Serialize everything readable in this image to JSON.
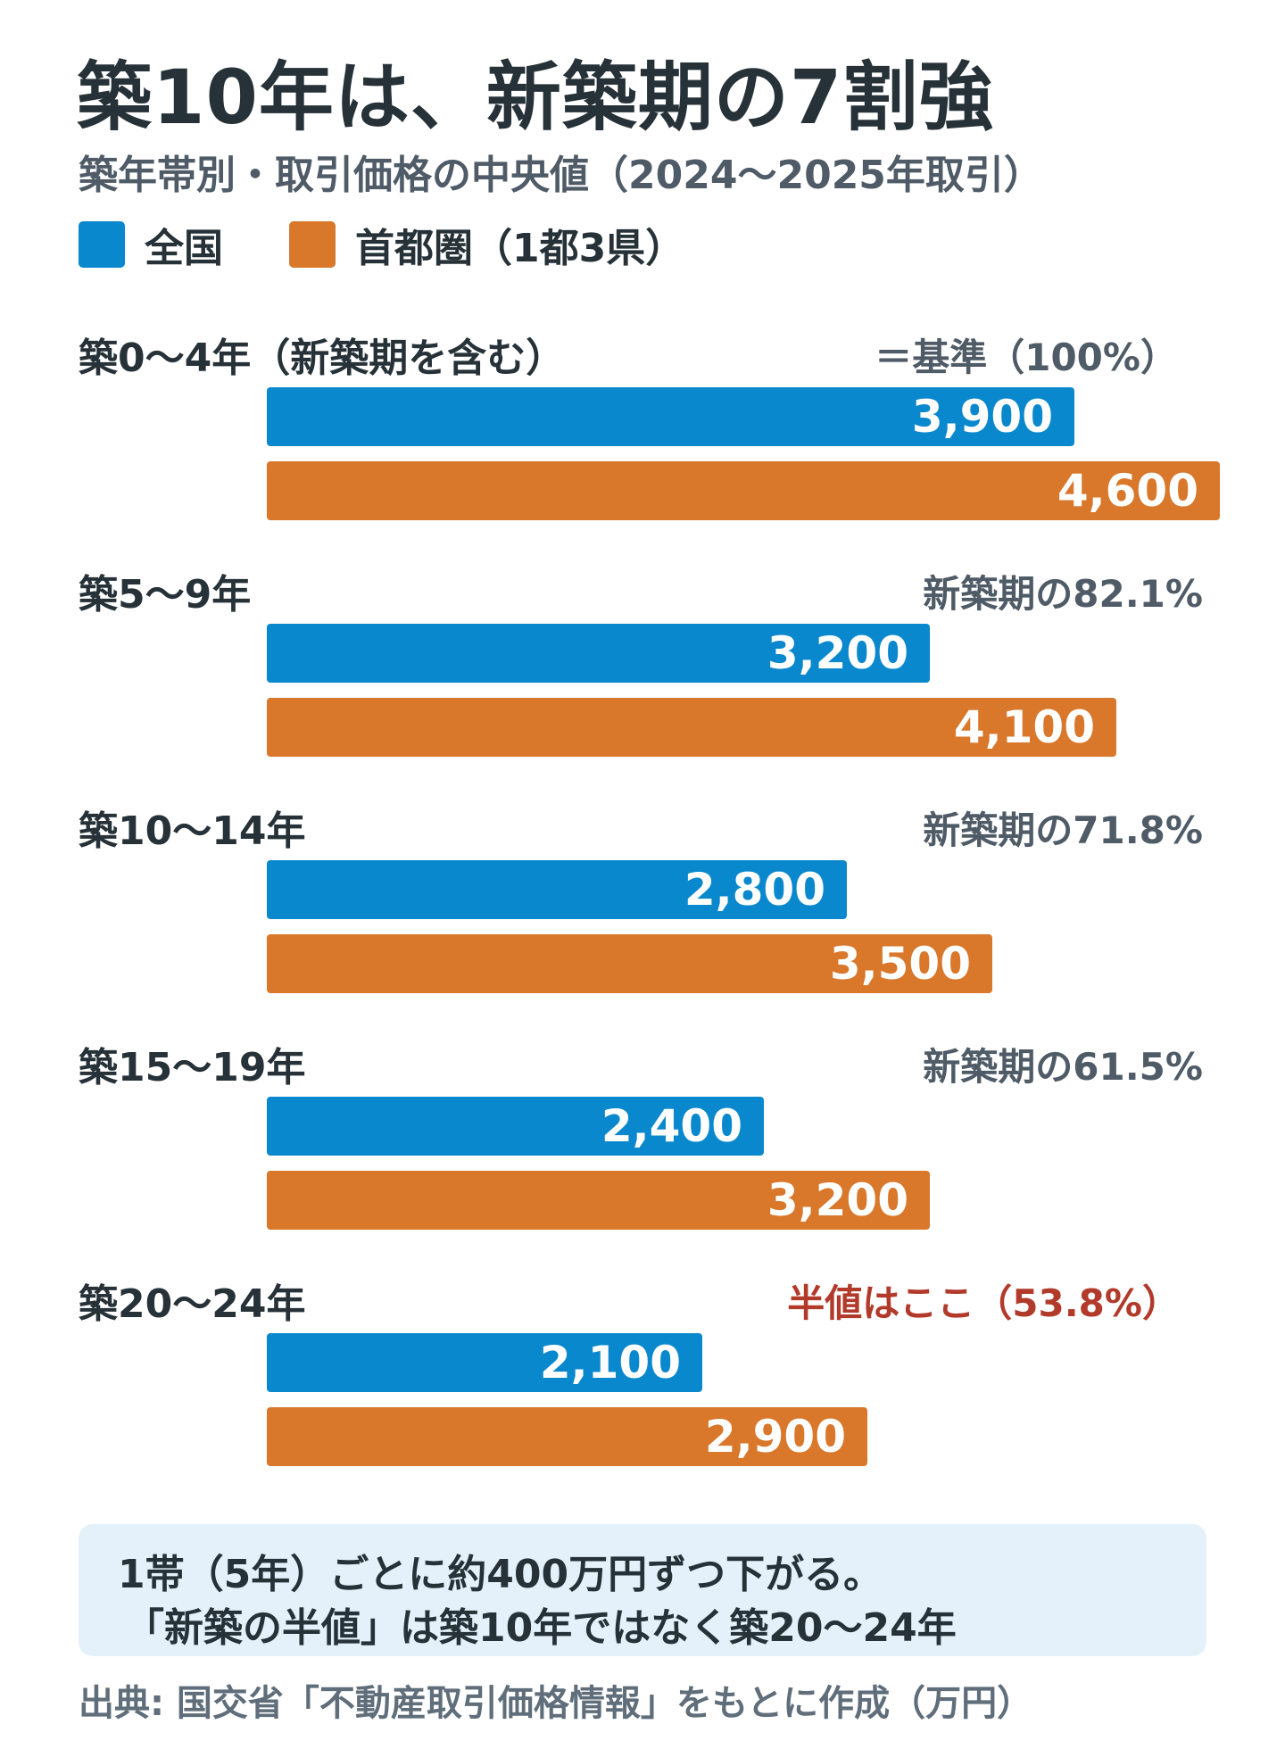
{
  "title": "築10年は、新築期の7割強",
  "subtitle": "築年帯別・取引価格の中央値（2024〜2025年取引）",
  "colors": {
    "national": "#0a88cd",
    "metro": "#d9772b",
    "note_red": "#b23a2a",
    "callout_bg": "#e4f1fa"
  },
  "chart_data": {
    "type": "bar",
    "orientation": "horizontal",
    "title": "築10年は、新築期の7割強",
    "subtitle": "築年帯別・取引価格の中央値（2024〜2025年取引）",
    "unit": "万円",
    "categories": [
      "築0〜4年（新築期を含む）",
      "築5〜9年",
      "築10〜14年",
      "築15〜19年",
      "築20〜24年"
    ],
    "category_notes": [
      "＝基準（100%）",
      "新築期の82.1%",
      "新築期の71.8%",
      "新築期の61.5%",
      "半値はここ（53.8%）"
    ],
    "series": [
      {
        "name": "全国",
        "values": [
          3900,
          3200,
          2800,
          2400,
          2100
        ],
        "labels": [
          "3,900",
          "3,200",
          "2,800",
          "2,400",
          "2,100"
        ]
      },
      {
        "name": "首都圏（1都3県）",
        "values": [
          4600,
          4100,
          3500,
          3200,
          2900
        ],
        "labels": [
          "4,600",
          "4,100",
          "3,500",
          "3,200",
          "2,900"
        ]
      }
    ],
    "xlim": [
      0,
      4600
    ],
    "grid": false,
    "legend_position": "top-left"
  },
  "callout": {
    "line1": "1帯（5年）ごとに約400万円ずつ下がる。",
    "line2": "「新築の半値」は築10年ではなく築20〜24年"
  },
  "source": "出典: 国交省「不動産取引価格情報」をもとに作成（万円）"
}
